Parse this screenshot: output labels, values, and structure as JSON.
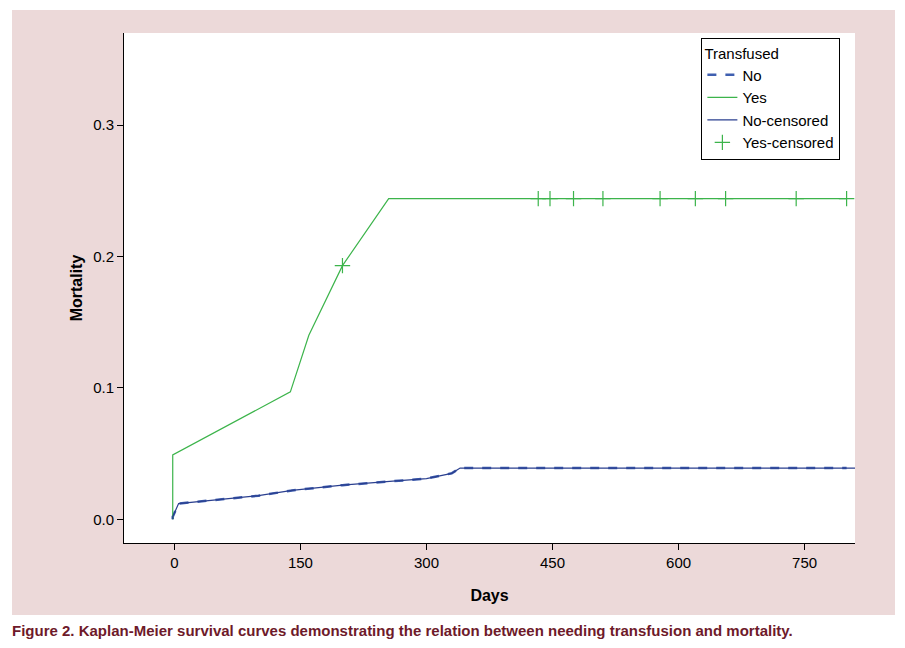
{
  "chart_data": {
    "type": "line",
    "caption": "Figure 2. Kaplan-Meier survival curves demonstrating the relation between needing transfusion and mortality.",
    "x_label": "Days",
    "y_label": "Mortality",
    "legend_title": "Transfused",
    "legend": "top-right",
    "grid": false,
    "xlim": [
      -60,
      810
    ],
    "xticks": [
      0,
      150,
      300,
      450,
      600,
      750
    ],
    "ylim": [
      -0.018,
      0.37
    ],
    "yticks": [
      {
        "value": 0,
        "label": "0.0"
      },
      0.1,
      0.2,
      0.3
    ],
    "series": [
      {
        "name": "No",
        "color": "#3f5fb0",
        "line_style": "dash",
        "x": [
          -2,
          -2,
          5,
          50,
          100,
          140,
          200,
          260,
          300,
          330,
          340,
          800
        ],
        "values": [
          0,
          0.002,
          0.012,
          0.015,
          0.018,
          0.022,
          0.026,
          0.029,
          0.031,
          0.035,
          0.039,
          0.039
        ]
      },
      {
        "name": "Yes",
        "color": "#3cb44b",
        "line_style": "solid",
        "x": [
          -2,
          -2,
          138,
          160,
          200,
          255,
          800
        ],
        "values": [
          0,
          0.049,
          0.097,
          0.14,
          0.193,
          0.244,
          0.244
        ]
      },
      {
        "name": "No-censored",
        "color": "#2a3f8f",
        "line_style": "solid",
        "x": [
          -2,
          -2,
          5,
          50,
          100,
          140,
          200,
          260,
          300,
          330,
          340,
          810
        ],
        "values": [
          0,
          0.002,
          0.012,
          0.015,
          0.018,
          0.022,
          0.026,
          0.029,
          0.031,
          0.035,
          0.039,
          0.039
        ]
      },
      {
        "name": "Yes-censored",
        "color": "#3cb44b",
        "line_style": "none",
        "marker": "cross",
        "x": [
          200,
          433,
          447,
          475,
          510,
          578,
          620,
          656,
          740,
          800
        ],
        "values": [
          0.193,
          0.244,
          0.244,
          0.244,
          0.244,
          0.244,
          0.244,
          0.244,
          0.244,
          0.244
        ]
      }
    ]
  }
}
